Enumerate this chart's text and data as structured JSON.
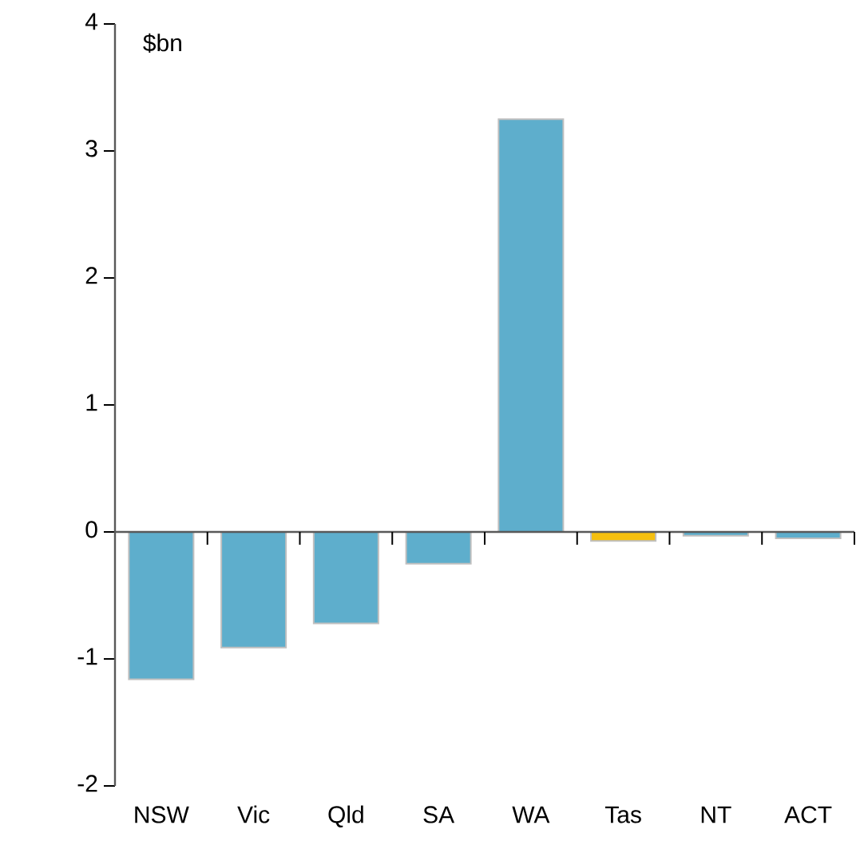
{
  "chart_data": {
    "type": "bar",
    "ylabel": "$bn",
    "categories": [
      "NSW",
      "Vic",
      "Qld",
      "SA",
      "WA",
      "Tas",
      "NT",
      "ACT"
    ],
    "values": [
      -1.16,
      -0.91,
      -0.72,
      -0.25,
      3.25,
      -0.07,
      -0.03,
      -0.05
    ],
    "colors": [
      "#5eaecc",
      "#5eaecc",
      "#5eaecc",
      "#5eaecc",
      "#5eaecc",
      "#f5bf0f",
      "#5eaecc",
      "#5eaecc"
    ],
    "ylim": [
      -2,
      4
    ],
    "yticks": [
      -2,
      -1,
      0,
      1,
      2,
      3,
      4
    ]
  }
}
